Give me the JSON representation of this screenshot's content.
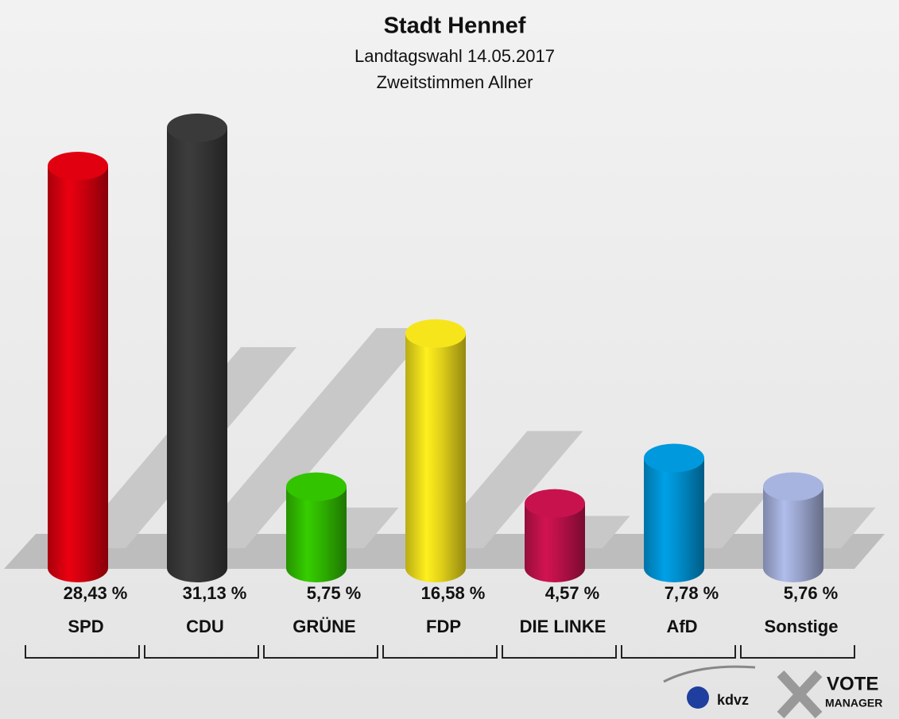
{
  "chart_data": {
    "type": "bar",
    "title": "Stadt Hennef",
    "subtitle": "Landtagswahl 14.05.2017",
    "subtitle2": "Zweitstimmen Allner",
    "categories": [
      "SPD",
      "CDU",
      "GRÜNE",
      "FDP",
      "DIE LINKE",
      "AfD",
      "Sonstige"
    ],
    "values": [
      28.43,
      31.13,
      5.75,
      16.58,
      4.57,
      7.78,
      5.76
    ],
    "value_labels": [
      "28,43 %",
      "31,13 %",
      "5,75 %",
      "16,58 %",
      "4,57 %",
      "7,78 %",
      "5,76 %"
    ],
    "colors": [
      "#e0000f",
      "#3a3a3a",
      "#33c400",
      "#f7e51c",
      "#c8124e",
      "#0099dd",
      "#a8b4e0"
    ]
  },
  "branding": {
    "brand": "kdvz",
    "logo": "VOTE",
    "logo_sub": "MANAGER"
  }
}
